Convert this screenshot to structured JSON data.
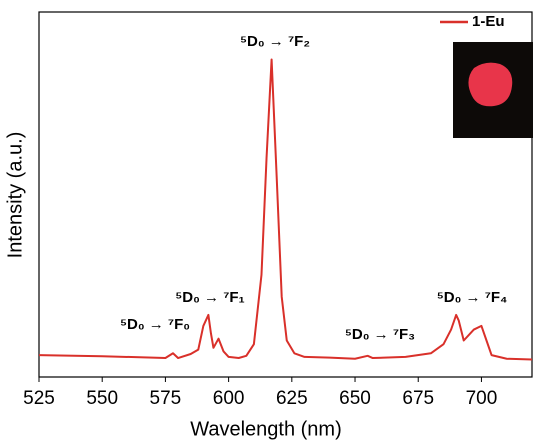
{
  "chart_data": {
    "type": "line",
    "x_label": "Wavelength (nm)",
    "y_label": "Intensity (a.u.)",
    "x": [
      525,
      550,
      575,
      578,
      580,
      585,
      588,
      590,
      592,
      593,
      594,
      596,
      598,
      600,
      604,
      607,
      610,
      613,
      615,
      617,
      619,
      621,
      623,
      626,
      630,
      640,
      650,
      655,
      657,
      670,
      680,
      685,
      688,
      690,
      691,
      693,
      697,
      700,
      702,
      704,
      710,
      720
    ],
    "series": [
      {
        "name": "1-Eu",
        "color": "#d9302a",
        "values": [
          6,
          5.7,
          5.2,
          6.5,
          5.2,
          6.3,
          7.5,
          14,
          17,
          12,
          8,
          10.5,
          7,
          5.5,
          5.2,
          5.8,
          9,
          28,
          60,
          87,
          55,
          22,
          10,
          6.5,
          5.5,
          5.3,
          5,
          5.8,
          5.2,
          5.5,
          6.5,
          9,
          13,
          17,
          15.5,
          10,
          13,
          14,
          10,
          6,
          5,
          4.8
        ]
      }
    ],
    "xlim": [
      525,
      720
    ],
    "xticks": [
      525,
      550,
      575,
      600,
      625,
      650,
      675,
      700
    ],
    "ylim": [
      0,
      100
    ],
    "annotations": [
      "⁵D₀ → ⁷F₀",
      "⁵D₀ → ⁷F₁",
      "⁵D₀ → ⁷F₂",
      "⁵D₀ → ⁷F₃",
      "⁵D₀ → ⁷F₄"
    ]
  }
}
